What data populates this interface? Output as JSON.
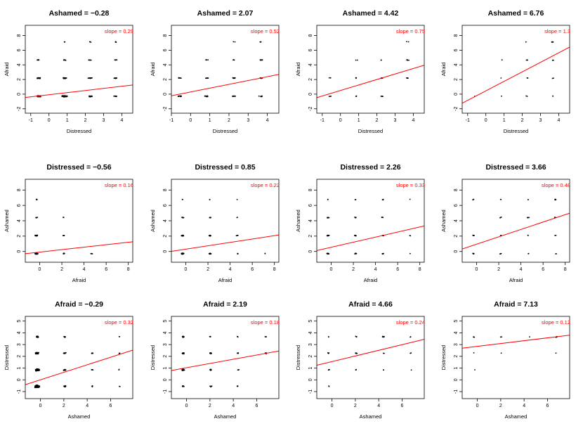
{
  "slope_prefix": "slope = ",
  "chart_data": [
    {
      "type": "scatter",
      "title": "Ashamed = −0.28",
      "xlabel": "Distressed",
      "ylabel": "Afraid",
      "xlim": [
        -1.3,
        4.6
      ],
      "ylim": [
        -2.6,
        9.4
      ],
      "xticks": [
        "-1",
        "0",
        "1",
        "2",
        "3",
        "4"
      ],
      "yticks": [
        "-2",
        "0",
        "2",
        "4",
        "6",
        "8"
      ],
      "slope": "0.29",
      "fit": {
        "intercept": -0.08,
        "slope": 0.29
      },
      "line_color": "#ff0000",
      "clusters": [
        [
          -0.56,
          -0.29,
          60
        ],
        [
          0.85,
          -0.29,
          70
        ],
        [
          2.26,
          -0.29,
          25
        ],
        [
          3.66,
          -0.29,
          12
        ],
        [
          -0.56,
          2.19,
          30
        ],
        [
          0.85,
          2.19,
          35
        ],
        [
          2.26,
          2.19,
          15
        ],
        [
          3.66,
          2.19,
          10
        ],
        [
          -0.56,
          4.66,
          8
        ],
        [
          0.85,
          4.66,
          8
        ],
        [
          2.26,
          4.66,
          6
        ],
        [
          3.66,
          4.66,
          4
        ],
        [
          0.85,
          7.13,
          3
        ],
        [
          2.26,
          7.13,
          3
        ],
        [
          3.66,
          7.13,
          4
        ]
      ]
    },
    {
      "type": "scatter",
      "title": "Ashamed = 2.07",
      "xlabel": "Distressed",
      "ylabel": "Afraid",
      "xlim": [
        -1.0,
        4.6
      ],
      "ylim": [
        -2.6,
        9.4
      ],
      "xticks": [
        "-1",
        "0",
        "1",
        "2",
        "3",
        "4"
      ],
      "yticks": [
        "-2",
        "0",
        "2",
        "4",
        "6",
        "8"
      ],
      "slope": "0.52",
      "fit": {
        "intercept": 0.3,
        "slope": 0.52
      },
      "line_color": "#ff0000",
      "clusters": [
        [
          -0.56,
          -0.29,
          20
        ],
        [
          0.85,
          -0.29,
          25
        ],
        [
          2.26,
          -0.29,
          14
        ],
        [
          3.66,
          -0.29,
          8
        ],
        [
          -0.56,
          2.19,
          6
        ],
        [
          0.85,
          2.19,
          10
        ],
        [
          2.26,
          2.19,
          10
        ],
        [
          3.66,
          2.19,
          8
        ],
        [
          0.85,
          4.66,
          4
        ],
        [
          2.26,
          4.66,
          5
        ],
        [
          3.66,
          4.66,
          6
        ],
        [
          2.26,
          7.13,
          2
        ],
        [
          3.66,
          7.13,
          3
        ]
      ]
    },
    {
      "type": "scatter",
      "title": "Ashamed = 4.42",
      "xlabel": "Distressed",
      "ylabel": "Afraid",
      "xlim": [
        -1.3,
        4.6
      ],
      "ylim": [
        -2.6,
        9.4
      ],
      "xticks": [
        "-1",
        "0",
        "1",
        "2",
        "3",
        "4"
      ],
      "yticks": [
        "-2",
        "0",
        "2",
        "4",
        "6",
        "8"
      ],
      "slope": "0.75",
      "fit": {
        "intercept": 0.5,
        "slope": 0.75
      },
      "line_color": "#ff0000",
      "clusters": [
        [
          -0.56,
          -0.29,
          4
        ],
        [
          0.85,
          -0.29,
          4
        ],
        [
          2.26,
          -0.29,
          5
        ],
        [
          -0.56,
          2.19,
          2
        ],
        [
          0.85,
          2.19,
          3
        ],
        [
          2.26,
          2.19,
          5
        ],
        [
          3.66,
          2.19,
          5
        ],
        [
          0.85,
          4.66,
          2
        ],
        [
          2.26,
          4.66,
          3
        ],
        [
          3.66,
          4.66,
          6
        ],
        [
          3.66,
          7.13,
          2
        ]
      ]
    },
    {
      "type": "scatter",
      "title": "Ashamed = 6.76",
      "xlabel": "Distressed",
      "ylabel": "Afraid",
      "xlim": [
        -1.3,
        4.6
      ],
      "ylim": [
        -2.6,
        9.4
      ],
      "xticks": [
        "-1",
        "0",
        "1",
        "2",
        "3",
        "4"
      ],
      "yticks": [
        "-2",
        "0",
        "2",
        "4",
        "6",
        "8"
      ],
      "slope": "1.3",
      "fit": {
        "intercept": 0.45,
        "slope": 1.3
      },
      "line_color": "#ff0000",
      "clusters": [
        [
          -0.56,
          -0.29,
          1
        ],
        [
          0.85,
          -0.29,
          1
        ],
        [
          2.26,
          -0.29,
          2
        ],
        [
          3.66,
          -0.29,
          2
        ],
        [
          0.85,
          2.19,
          1
        ],
        [
          2.26,
          2.19,
          2
        ],
        [
          3.66,
          2.19,
          2
        ],
        [
          0.85,
          4.66,
          1
        ],
        [
          2.26,
          4.66,
          3
        ],
        [
          3.66,
          4.66,
          2
        ],
        [
          2.26,
          7.13,
          1
        ],
        [
          3.66,
          7.13,
          6
        ]
      ]
    },
    {
      "type": "scatter",
      "title": "Distressed = −0.56",
      "xlabel": "Afraid",
      "ylabel": "Ashamed",
      "xlim": [
        -1.3,
        8.4
      ],
      "ylim": [
        -1.4,
        9.4
      ],
      "xticks": [
        "0",
        "2",
        "4",
        "6",
        "8"
      ],
      "yticks": [
        "0",
        "2",
        "4",
        "6",
        "8"
      ],
      "slope": "0.16",
      "fit": {
        "intercept": -0.08,
        "slope": 0.16
      },
      "line_color": "#ff0000",
      "clusters": [
        [
          -0.29,
          -0.28,
          80
        ],
        [
          -0.29,
          2.07,
          25
        ],
        [
          -0.29,
          4.42,
          8
        ],
        [
          -0.29,
          6.76,
          4
        ],
        [
          2.19,
          -0.28,
          15
        ],
        [
          2.19,
          2.07,
          6
        ],
        [
          2.19,
          4.42,
          3
        ],
        [
          4.66,
          -0.28,
          4
        ]
      ]
    },
    {
      "type": "scatter",
      "title": "Distressed = 0.85",
      "xlabel": "Afraid",
      "ylabel": "Ashamed",
      "xlim": [
        -1.3,
        8.4
      ],
      "ylim": [
        -1.4,
        9.4
      ],
      "xticks": [
        "0",
        "2",
        "4",
        "6",
        "8"
      ],
      "yticks": [
        "0",
        "2",
        "4",
        "6",
        "8"
      ],
      "slope": "0.22",
      "fit": {
        "intercept": 0.3,
        "slope": 0.22
      },
      "line_color": "#ff0000",
      "clusters": [
        [
          -0.29,
          -0.28,
          45
        ],
        [
          -0.29,
          2.07,
          25
        ],
        [
          -0.29,
          4.42,
          8
        ],
        [
          -0.29,
          6.76,
          2
        ],
        [
          2.19,
          -0.28,
          20
        ],
        [
          2.19,
          2.07,
          15
        ],
        [
          2.19,
          4.42,
          5
        ],
        [
          2.19,
          6.76,
          2
        ],
        [
          4.66,
          -0.28,
          5
        ],
        [
          4.66,
          2.07,
          5
        ],
        [
          4.66,
          4.42,
          2
        ],
        [
          4.66,
          6.76,
          1
        ],
        [
          7.13,
          -0.28,
          2
        ]
      ]
    },
    {
      "type": "scatter",
      "title": "Distressed = 2.26",
      "xlabel": "Afraid",
      "ylabel": "Ashamed",
      "xlim": [
        -1.3,
        8.4
      ],
      "ylim": [
        -1.4,
        9.4
      ],
      "xticks": [
        "0",
        "2",
        "4",
        "6",
        "8"
      ],
      "yticks": [
        "0",
        "2",
        "4",
        "6",
        "8"
      ],
      "slope": "0.33",
      "fit": {
        "intercept": 0.55,
        "slope": 0.33
      },
      "line_color": "#ff0000",
      "clusters": [
        [
          -0.29,
          -0.28,
          20
        ],
        [
          -0.29,
          2.07,
          15
        ],
        [
          -0.29,
          4.42,
          10
        ],
        [
          -0.29,
          6.76,
          3
        ],
        [
          2.19,
          -0.28,
          14
        ],
        [
          2.19,
          2.07,
          12
        ],
        [
          2.19,
          4.42,
          6
        ],
        [
          2.19,
          6.76,
          3
        ],
        [
          4.66,
          -0.28,
          6
        ],
        [
          4.66,
          2.07,
          4
        ],
        [
          4.66,
          4.42,
          5
        ],
        [
          4.66,
          6.76,
          3
        ],
        [
          7.13,
          -0.28,
          1
        ],
        [
          7.13,
          2.07,
          2
        ],
        [
          7.13,
          6.76,
          1
        ]
      ]
    },
    {
      "type": "scatter",
      "title": "Distressed = 3.66",
      "xlabel": "Afraid",
      "ylabel": "Ashamed",
      "xlim": [
        -1.3,
        8.4
      ],
      "ylim": [
        -1.4,
        9.4
      ],
      "xticks": [
        "0",
        "2",
        "4",
        "6",
        "8"
      ],
      "yticks": [
        "0",
        "2",
        "4",
        "6",
        "8"
      ],
      "slope": "0.48",
      "fit": {
        "intercept": 0.95,
        "slope": 0.48
      },
      "line_color": "#ff0000",
      "clusters": [
        [
          -0.29,
          -0.28,
          8
        ],
        [
          -0.29,
          2.07,
          5
        ],
        [
          -0.29,
          6.76,
          3
        ],
        [
          2.19,
          -0.28,
          4
        ],
        [
          2.19,
          2.07,
          3
        ],
        [
          2.19,
          4.42,
          4
        ],
        [
          2.19,
          6.76,
          2
        ],
        [
          4.66,
          -0.28,
          2
        ],
        [
          4.66,
          2.07,
          2
        ],
        [
          4.66,
          4.42,
          5
        ],
        [
          4.66,
          6.76,
          2
        ],
        [
          7.13,
          -0.28,
          2
        ],
        [
          7.13,
          2.07,
          2
        ],
        [
          7.13,
          4.42,
          3
        ],
        [
          7.13,
          6.76,
          10
        ]
      ]
    },
    {
      "type": "scatter",
      "title": "Afraid = −0.29",
      "xlabel": "Ashamed",
      "ylabel": "Distressed",
      "xlim": [
        -1.3,
        7.9
      ],
      "ylim": [
        -1.6,
        5.4
      ],
      "xticks": [
        "0",
        "2",
        "4",
        "6"
      ],
      "yticks": [
        "-1",
        "0",
        "1",
        "2",
        "3",
        "4",
        "5"
      ],
      "slope": "0.32",
      "fit": {
        "intercept": 0.0,
        "slope": 0.32
      },
      "line_color": "#ff0000",
      "clusters": [
        [
          -0.28,
          -0.56,
          140
        ],
        [
          -0.28,
          0.85,
          110
        ],
        [
          -0.28,
          2.26,
          70
        ],
        [
          -0.28,
          3.66,
          30
        ],
        [
          2.07,
          -0.56,
          15
        ],
        [
          2.07,
          0.85,
          20
        ],
        [
          2.07,
          2.26,
          15
        ],
        [
          2.07,
          3.66,
          8
        ],
        [
          4.42,
          -0.56,
          4
        ],
        [
          4.42,
          0.85,
          4
        ],
        [
          4.42,
          2.26,
          8
        ],
        [
          6.76,
          -0.56,
          2
        ],
        [
          6.76,
          0.85,
          2
        ],
        [
          6.76,
          2.26,
          4
        ],
        [
          6.76,
          3.66,
          2
        ]
      ]
    },
    {
      "type": "scatter",
      "title": "Afraid = 2.19",
      "xlabel": "Ashamed",
      "ylabel": "Distressed",
      "xlim": [
        -1.3,
        7.9
      ],
      "ylim": [
        -1.6,
        5.4
      ],
      "xticks": [
        "0",
        "2",
        "4",
        "6"
      ],
      "yticks": [
        "-1",
        "0",
        "1",
        "2",
        "3",
        "4",
        "5"
      ],
      "slope": "0.18",
      "fit": {
        "intercept": 1.03,
        "slope": 0.18
      },
      "line_color": "#ff0000",
      "clusters": [
        [
          -0.28,
          -0.56,
          15
        ],
        [
          -0.28,
          0.85,
          30
        ],
        [
          -0.28,
          2.26,
          20
        ],
        [
          -0.28,
          3.66,
          10
        ],
        [
          2.07,
          -0.56,
          5
        ],
        [
          2.07,
          0.85,
          10
        ],
        [
          2.07,
          2.26,
          15
        ],
        [
          2.07,
          3.66,
          4
        ],
        [
          4.42,
          -0.56,
          3
        ],
        [
          4.42,
          0.85,
          3
        ],
        [
          4.42,
          2.26,
          6
        ],
        [
          4.42,
          3.66,
          3
        ],
        [
          6.76,
          2.26,
          3
        ],
        [
          6.76,
          3.66,
          3
        ]
      ]
    },
    {
      "type": "scatter",
      "title": "Afraid = 4.66",
      "xlabel": "Ashamed",
      "ylabel": "Distressed",
      "xlim": [
        -1.3,
        7.9
      ],
      "ylim": [
        -1.6,
        5.4
      ],
      "xticks": [
        "0",
        "2",
        "4",
        "6"
      ],
      "yticks": [
        "-1",
        "0",
        "1",
        "2",
        "3",
        "4",
        "5"
      ],
      "slope": "0.24",
      "fit": {
        "intercept": 1.55,
        "slope": 0.24
      },
      "line_color": "#ff0000",
      "clusters": [
        [
          -0.28,
          -0.56,
          2
        ],
        [
          -0.28,
          0.85,
          4
        ],
        [
          -0.28,
          2.26,
          5
        ],
        [
          -0.28,
          3.66,
          2
        ],
        [
          2.07,
          0.85,
          3
        ],
        [
          2.07,
          2.26,
          4
        ],
        [
          2.07,
          3.66,
          3
        ],
        [
          4.42,
          0.85,
          2
        ],
        [
          4.42,
          2.26,
          2
        ],
        [
          4.42,
          3.66,
          6
        ],
        [
          6.76,
          2.26,
          2
        ],
        [
          6.76,
          0.85,
          1
        ],
        [
          6.76,
          3.66,
          2
        ]
      ]
    },
    {
      "type": "scatter",
      "title": "Afraid = 7.13",
      "xlabel": "Ashamed",
      "ylabel": "Distressed",
      "xlim": [
        -1.3,
        7.9
      ],
      "ylim": [
        -1.6,
        5.4
      ],
      "xticks": [
        "0",
        "2",
        "4",
        "6"
      ],
      "yticks": [
        "-1",
        "0",
        "1",
        "2",
        "3",
        "4",
        "5"
      ],
      "slope": "0.12",
      "fit": {
        "intercept": 2.85,
        "slope": 0.12
      },
      "line_color": "#ff0000",
      "clusters": [
        [
          -0.28,
          0.85,
          1
        ],
        [
          -0.28,
          2.26,
          1
        ],
        [
          -0.28,
          3.66,
          3
        ],
        [
          2.07,
          2.26,
          1
        ],
        [
          2.07,
          3.66,
          2
        ],
        [
          4.42,
          3.66,
          1
        ],
        [
          6.76,
          2.26,
          1
        ],
        [
          6.76,
          3.66,
          6
        ]
      ]
    }
  ]
}
